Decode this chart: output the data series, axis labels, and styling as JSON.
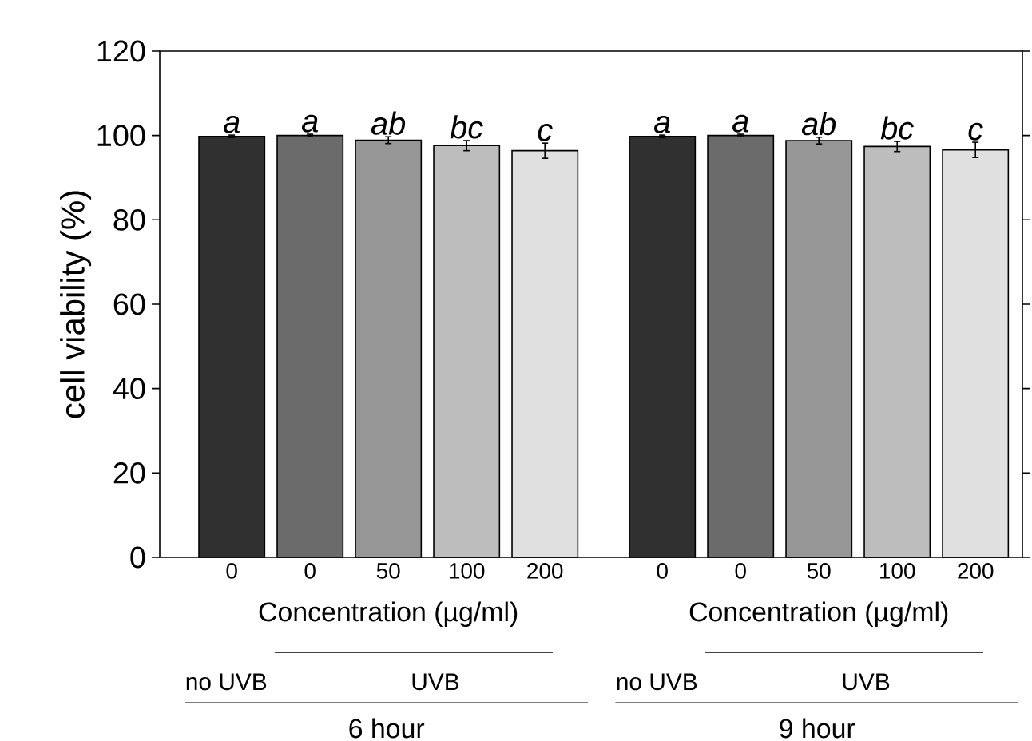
{
  "chart_data": {
    "type": "bar",
    "ylabel": "cell viability (%)",
    "xlabel": "Concentration (µg/ml)",
    "categories": [
      "0",
      "0",
      "50",
      "100",
      "200",
      "0",
      "0",
      "50",
      "100",
      "200"
    ],
    "values": [
      99.8,
      100,
      98.9,
      97.6,
      96.4,
      99.8,
      100,
      98.8,
      97.4,
      96.6
    ],
    "errors": [
      0.3,
      0.3,
      0.8,
      1.2,
      1.8,
      0.3,
      0.3,
      0.8,
      1.2,
      1.8
    ],
    "colors": [
      "#303030",
      "#6b6b6b",
      "#969696",
      "#bdbdbd",
      "#e0e0e0",
      "#303030",
      "#6b6b6b",
      "#969696",
      "#bdbdbd",
      "#e0e0e0"
    ],
    "value_labels": [
      "a",
      "a",
      "ab",
      "bc",
      "c",
      "a",
      "a",
      "ab",
      "bc",
      "c"
    ],
    "ylim": [
      0,
      120
    ],
    "yticks": [
      0,
      20,
      40,
      60,
      80,
      100,
      120
    ],
    "annotations": [
      "no UVB",
      "UVB",
      "6 hour",
      "no UVB",
      "UVB",
      "9 hour"
    ]
  }
}
